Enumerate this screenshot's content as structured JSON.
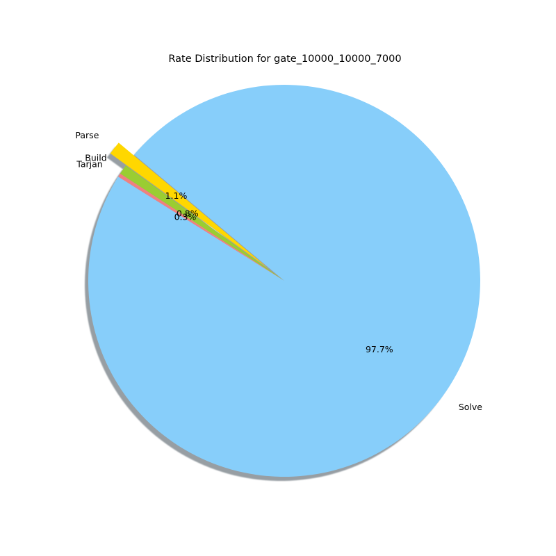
{
  "chart_data": {
    "type": "pie",
    "title": "Rate Distribution for gate_10000_10000_7000",
    "shadow": true,
    "start_angle_deg": 140,
    "direction": "counterclockwise",
    "slices": [
      {
        "label": "Parse",
        "value": 1.1,
        "pct_label": "1.1%",
        "color": "#FFD700",
        "explode": 0.1
      },
      {
        "label": "Build",
        "value": 0.8,
        "pct_label": "0.8%",
        "color": "#9ACD32",
        "explode": 0.0
      },
      {
        "label": "Tarjan",
        "value": 0.3,
        "pct_label": "0.3%",
        "color": "#F08080",
        "explode": 0.0
      },
      {
        "label": "Solve",
        "value": 97.7,
        "pct_label": "97.7%",
        "color": "#87CEFA",
        "explode": 0.0
      }
    ]
  }
}
